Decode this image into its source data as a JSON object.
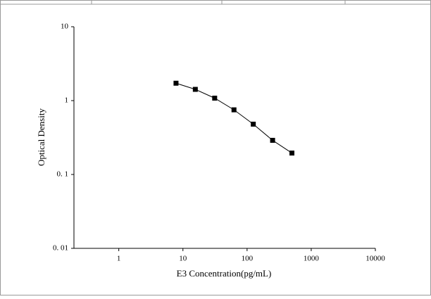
{
  "chart_data": {
    "type": "line",
    "x_label": "E3 Concentration(pg/mL)",
    "y_label": "Optical Density",
    "x": [
      7.8,
      15.6,
      31.25,
      62.5,
      125,
      250,
      500
    ],
    "series": [
      {
        "color": "#000000",
        "values": [
          1.72,
          1.42,
          1.08,
          0.75,
          0.48,
          0.29,
          0.195
        ]
      }
    ],
    "x_log": true,
    "y_log": true,
    "xlim": [
      0.2,
      10000
    ],
    "xticks": [
      1,
      10,
      100,
      1000,
      10000
    ],
    "ylim": [
      0.01,
      10
    ],
    "yticks": [
      {
        "value": 0.01,
        "label": "0. 01"
      },
      {
        "value": 0.1,
        "label": "0. 1"
      },
      1,
      10
    ]
  }
}
